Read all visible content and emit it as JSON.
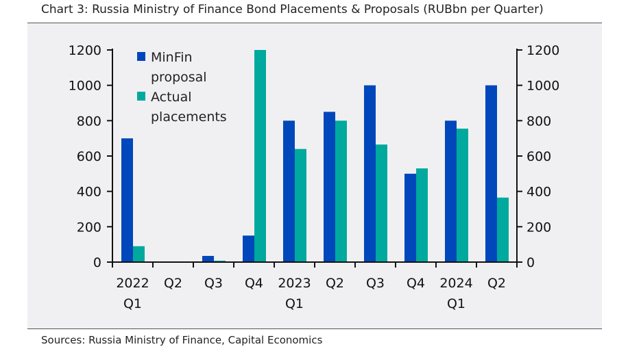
{
  "title": "Chart 3: Russia Ministry of Finance Bond Placements & Proposals (RUBbn per Quarter)",
  "source": "Sources: Russia Ministry of Finance, Capital Economics",
  "chart_data": {
    "type": "bar",
    "title": "Chart 3: Russia Ministry of Finance Bond Placements & Proposals (RUBbn per Quarter)",
    "categories": [
      [
        "2022",
        "Q1"
      ],
      [
        "Q2"
      ],
      [
        "Q3"
      ],
      [
        "Q4"
      ],
      [
        "2023",
        "Q1"
      ],
      [
        "Q2"
      ],
      [
        "Q3"
      ],
      [
        "Q4"
      ],
      [
        "2024",
        "Q1"
      ],
      [
        "Q2"
      ]
    ],
    "series": [
      {
        "name": "MinFin proposal",
        "legend_lines": [
          "MinFin",
          "proposal"
        ],
        "color": "#0047bb",
        "values": [
          700,
          0,
          35,
          150,
          800,
          850,
          1000,
          500,
          800,
          1000
        ]
      },
      {
        "name": "Actual placements",
        "legend_lines": [
          "Actual",
          "placements"
        ],
        "color": "#00a99d",
        "values": [
          90,
          0,
          8,
          1200,
          640,
          800,
          665,
          530,
          755,
          365
        ]
      }
    ],
    "ylim": [
      0,
      1200
    ],
    "yticks": [
      0,
      200,
      400,
      600,
      800,
      1000,
      1200
    ],
    "secondary_axis": true,
    "legend": "top-left",
    "grid": false
  }
}
